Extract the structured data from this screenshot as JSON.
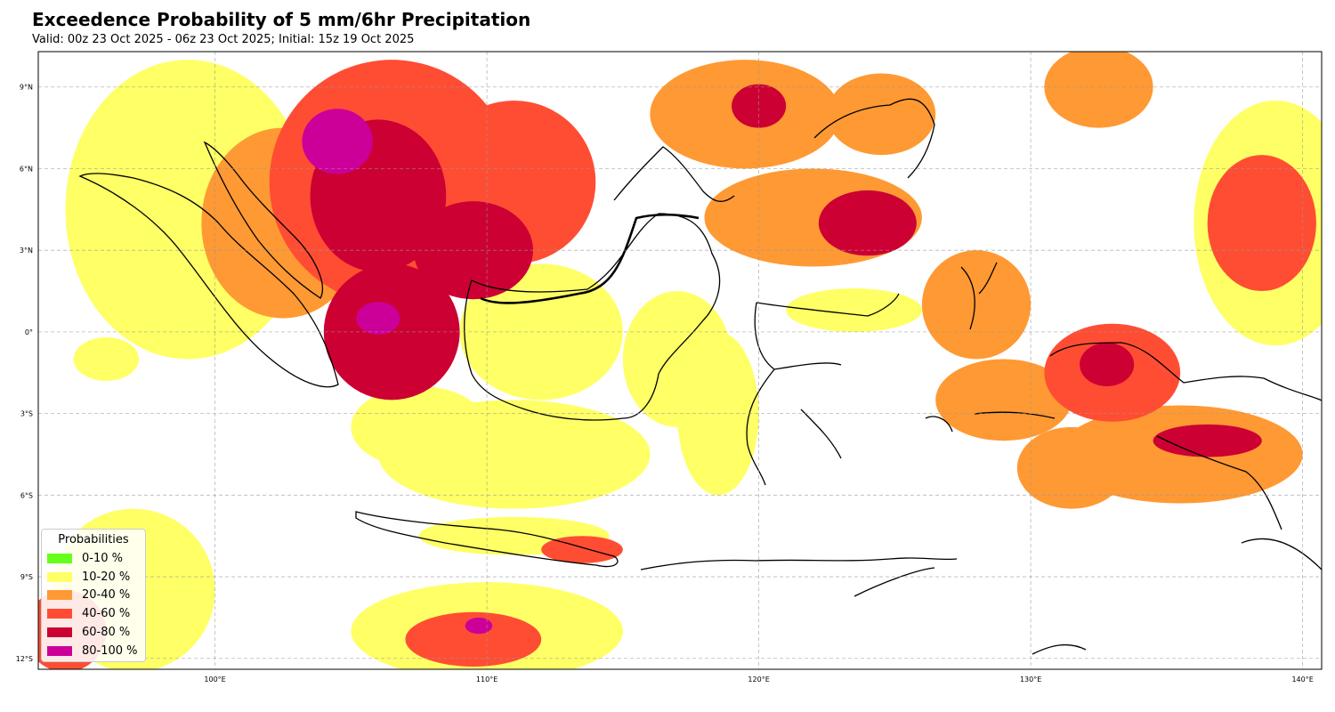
{
  "title": "Exceedence Probability of 5 mm/6hr Precipitation",
  "subtitle": "Valid: 00z 23 Oct 2025 - 06z 23 Oct 2025; Initial: 15z 19 Oct 2025",
  "map": {
    "lon_range": [
      93.5,
      140.7
    ],
    "lat_range": [
      -12.4,
      10.3
    ],
    "lat_ticks": [
      {
        "value": 9,
        "label": "9°N"
      },
      {
        "value": 6,
        "label": "6°N"
      },
      {
        "value": 3,
        "label": "3°N"
      },
      {
        "value": 0,
        "label": "0°"
      },
      {
        "value": -3,
        "label": "3°S"
      },
      {
        "value": -6,
        "label": "6°S"
      },
      {
        "value": -9,
        "label": "9°S"
      },
      {
        "value": -12,
        "label": "12°S"
      }
    ],
    "lon_ticks": [
      {
        "value": 100,
        "label": "100°E"
      },
      {
        "value": 110,
        "label": "110°E"
      },
      {
        "value": 120,
        "label": "120°E"
      },
      {
        "value": 130,
        "label": "130°E"
      },
      {
        "value": 140,
        "label": "140°E"
      }
    ]
  },
  "legend": {
    "title": "Probabilities",
    "items": [
      {
        "label": "0-10 %",
        "color": "#66ff1a"
      },
      {
        "label": "10-20 %",
        "color": "#ffff66"
      },
      {
        "label": "20-40 %",
        "color": "#ff9933"
      },
      {
        "label": "40-60 %",
        "color": "#ff4d33"
      },
      {
        "label": "60-80 %",
        "color": "#cc0033"
      },
      {
        "label": "80-100 %",
        "color": "#cc0099"
      }
    ]
  },
  "probability_regions": [
    {
      "name": "sumatra-north",
      "lon": 99.0,
      "lat": 4.5,
      "rx": 4.5,
      "ry": 5.5,
      "level": 1
    },
    {
      "name": "malacca",
      "lon": 102.5,
      "lat": 4.0,
      "rx": 3.0,
      "ry": 3.5,
      "level": 2
    },
    {
      "name": "south-china-sea-west",
      "lon": 106.5,
      "lat": 5.5,
      "rx": 4.5,
      "ry": 4.5,
      "level": 3
    },
    {
      "name": "south-china-sea-west-core",
      "lon": 106.0,
      "lat": 5.0,
      "rx": 2.5,
      "ry": 2.8,
      "level": 4
    },
    {
      "name": "south-china-sea-west-peak",
      "lon": 104.5,
      "lat": 7.0,
      "rx": 1.3,
      "ry": 1.2,
      "level": 5
    },
    {
      "name": "karimata",
      "lon": 106.5,
      "lat": 0.0,
      "rx": 2.5,
      "ry": 2.5,
      "level": 4
    },
    {
      "name": "karimata-peak",
      "lon": 106.0,
      "lat": 0.5,
      "rx": 0.8,
      "ry": 0.6,
      "level": 5
    },
    {
      "name": "south-china-sea-east",
      "lon": 111.0,
      "lat": 5.5,
      "rx": 3.0,
      "ry": 3.0,
      "level": 3
    },
    {
      "name": "natuna",
      "lon": 109.5,
      "lat": 3.0,
      "rx": 2.2,
      "ry": 1.8,
      "level": 4
    },
    {
      "name": "java-sea-west",
      "lon": 107.5,
      "lat": -3.5,
      "rx": 2.5,
      "ry": 1.5,
      "level": 1
    },
    {
      "name": "java-sea",
      "lon": 111.0,
      "lat": -4.5,
      "rx": 5.0,
      "ry": 2.0,
      "level": 1
    },
    {
      "name": "kalimantan-west",
      "lon": 112.0,
      "lat": 0.0,
      "rx": 3.0,
      "ry": 2.5,
      "level": 1
    },
    {
      "name": "kalimantan-east",
      "lon": 117.0,
      "lat": -1.0,
      "rx": 2.0,
      "ry": 2.5,
      "level": 1
    },
    {
      "name": "makassar-strait",
      "lon": 118.5,
      "lat": -3.0,
      "rx": 1.5,
      "ry": 3.0,
      "level": 1
    },
    {
      "name": "sulu-sea",
      "lon": 119.5,
      "lat": 8.0,
      "rx": 3.5,
      "ry": 2.0,
      "level": 2
    },
    {
      "name": "sulu-sea-core",
      "lon": 120.0,
      "lat": 8.3,
      "rx": 1.0,
      "ry": 0.8,
      "level": 4
    },
    {
      "name": "celebes-sea",
      "lon": 122.0,
      "lat": 4.2,
      "rx": 4.0,
      "ry": 1.8,
      "level": 2
    },
    {
      "name": "celebes-sea-core",
      "lon": 124.0,
      "lat": 4.0,
      "rx": 1.8,
      "ry": 1.2,
      "level": 4
    },
    {
      "name": "mindanao",
      "lon": 124.5,
      "lat": 8.0,
      "rx": 2.0,
      "ry": 1.5,
      "level": 2
    },
    {
      "name": "philippine-sea",
      "lon": 132.5,
      "lat": 9.0,
      "rx": 2.0,
      "ry": 1.5,
      "level": 2
    },
    {
      "name": "pacific-east",
      "lon": 139.0,
      "lat": 4.0,
      "rx": 3.0,
      "ry": 4.5,
      "level": 1
    },
    {
      "name": "pacific-east-core",
      "lon": 138.5,
      "lat": 4.0,
      "rx": 2.0,
      "ry": 2.5,
      "level": 3
    },
    {
      "name": "halmahera",
      "lon": 128.0,
      "lat": 1.0,
      "rx": 2.0,
      "ry": 2.0,
      "level": 2
    },
    {
      "name": "sulawesi-north",
      "lon": 123.5,
      "lat": 0.8,
      "rx": 2.5,
      "ry": 0.8,
      "level": 1
    },
    {
      "name": "maluku",
      "lon": 129.0,
      "lat": -2.5,
      "rx": 2.5,
      "ry": 1.5,
      "level": 2
    },
    {
      "name": "papua-west",
      "lon": 133.0,
      "lat": -1.5,
      "rx": 2.5,
      "ry": 1.8,
      "level": 3
    },
    {
      "name": "papua-core",
      "lon": 132.8,
      "lat": -1.2,
      "rx": 1.0,
      "ry": 0.8,
      "level": 4
    },
    {
      "name": "arafura",
      "lon": 135.5,
      "lat": -4.5,
      "rx": 4.5,
      "ry": 1.8,
      "level": 2
    },
    {
      "name": "arafura-core",
      "lon": 136.5,
      "lat": -4.0,
      "rx": 2.0,
      "ry": 0.6,
      "level": 4
    },
    {
      "name": "banda-sea",
      "lon": 131.5,
      "lat": -5.0,
      "rx": 2.0,
      "ry": 1.5,
      "level": 2
    },
    {
      "name": "java",
      "lon": 111.0,
      "lat": -7.5,
      "rx": 3.5,
      "ry": 0.7,
      "level": 1
    },
    {
      "name": "java-east",
      "lon": 113.5,
      "lat": -8.0,
      "rx": 1.5,
      "ry": 0.5,
      "level": 3
    },
    {
      "name": "indian-ocean-west",
      "lon": 97.0,
      "lat": -9.5,
      "rx": 3.0,
      "ry": 3.0,
      "level": 1
    },
    {
      "name": "indian-ocean-sw",
      "lon": 94.5,
      "lat": -11.0,
      "rx": 1.5,
      "ry": 1.5,
      "level": 3
    },
    {
      "name": "indian-ocean-south",
      "lon": 110.0,
      "lat": -11.0,
      "rx": 5.0,
      "ry": 1.8,
      "level": 1
    },
    {
      "name": "indian-ocean-south-core",
      "lon": 109.5,
      "lat": -11.3,
      "rx": 2.5,
      "ry": 1.0,
      "level": 3
    },
    {
      "name": "indian-ocean-south-peak",
      "lon": 109.7,
      "lat": -10.8,
      "rx": 0.5,
      "ry": 0.3,
      "level": 5
    },
    {
      "name": "indian-ocean-west-sumatra",
      "lon": 96.0,
      "lat": -1.0,
      "rx": 1.2,
      "ry": 0.8,
      "level": 1
    }
  ]
}
